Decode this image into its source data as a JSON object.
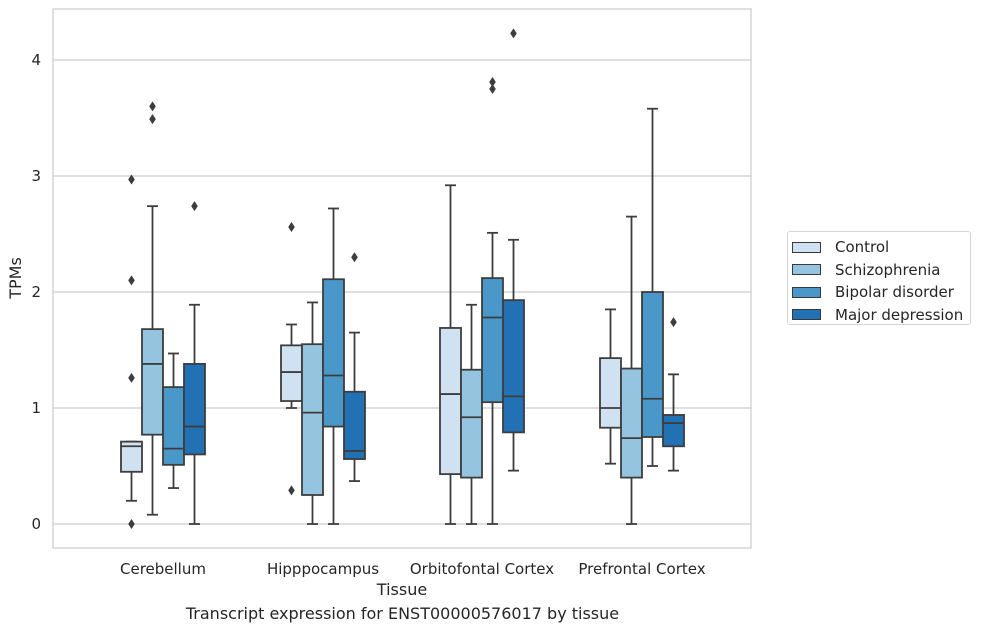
{
  "caption": "Transcript expression for ENST00000576017 by tissue",
  "chart_data": {
    "type": "boxplot",
    "title": "",
    "xlabel": "Tissue",
    "ylabel": "TPMs",
    "ylim": [
      -0.2,
      4.45
    ],
    "yticks": [
      0,
      1,
      2,
      3,
      4
    ],
    "grid": "horizontal",
    "legend_position": "right",
    "categories": [
      "Cerebellum",
      "Hipppocampus",
      "Orbitofontal Cortex",
      "Prefrontal Cortex"
    ],
    "series": [
      {
        "name": "Control",
        "color": "#d0e1f2",
        "boxes": [
          {
            "whisker_low": 0.2,
            "q1": 0.45,
            "median": 0.67,
            "q3": 0.71,
            "whisker_high": 0.71,
            "outliers": [
              0.0,
              1.26,
              2.1,
              2.97
            ]
          },
          {
            "whisker_low": 1.0,
            "q1": 1.06,
            "median": 1.31,
            "q3": 1.54,
            "whisker_high": 1.72,
            "outliers": [
              0.29,
              2.56
            ]
          },
          {
            "whisker_low": 0.0,
            "q1": 0.43,
            "median": 1.12,
            "q3": 1.69,
            "whisker_high": 2.92,
            "outliers": []
          },
          {
            "whisker_low": 0.52,
            "q1": 0.83,
            "median": 1.0,
            "q3": 1.43,
            "whisker_high": 1.85,
            "outliers": []
          }
        ]
      },
      {
        "name": "Schizophrenia",
        "color": "#94c4df",
        "boxes": [
          {
            "whisker_low": 0.08,
            "q1": 0.77,
            "median": 1.38,
            "q3": 1.68,
            "whisker_high": 2.74,
            "outliers": [
              3.49,
              3.6
            ]
          },
          {
            "whisker_low": 0.0,
            "q1": 0.25,
            "median": 0.96,
            "q3": 1.55,
            "whisker_high": 1.91,
            "outliers": []
          },
          {
            "whisker_low": 0.0,
            "q1": 0.4,
            "median": 0.92,
            "q3": 1.33,
            "whisker_high": 1.89,
            "outliers": []
          },
          {
            "whisker_low": 0.0,
            "q1": 0.4,
            "median": 0.74,
            "q3": 1.34,
            "whisker_high": 2.65,
            "outliers": []
          }
        ]
      },
      {
        "name": "Bipolar disorder",
        "color": "#4a98c9",
        "boxes": [
          {
            "whisker_low": 0.31,
            "q1": 0.51,
            "median": 0.65,
            "q3": 1.18,
            "whisker_high": 1.47,
            "outliers": []
          },
          {
            "whisker_low": 0.0,
            "q1": 0.84,
            "median": 1.28,
            "q3": 2.11,
            "whisker_high": 2.72,
            "outliers": []
          },
          {
            "whisker_low": 0.0,
            "q1": 1.05,
            "median": 1.78,
            "q3": 2.12,
            "whisker_high": 2.51,
            "outliers": [
              3.75,
              3.81
            ]
          },
          {
            "whisker_low": 0.5,
            "q1": 0.75,
            "median": 1.08,
            "q3": 2.0,
            "whisker_high": 3.58,
            "outliers": []
          }
        ]
      },
      {
        "name": "Major depression",
        "color": "#2271b5",
        "boxes": [
          {
            "whisker_low": 0.0,
            "q1": 0.6,
            "median": 0.84,
            "q3": 1.38,
            "whisker_high": 1.89,
            "outliers": [
              2.74
            ]
          },
          {
            "whisker_low": 0.37,
            "q1": 0.56,
            "median": 0.63,
            "q3": 1.14,
            "whisker_high": 1.65,
            "outliers": [
              2.3
            ]
          },
          {
            "whisker_low": 0.46,
            "q1": 0.79,
            "median": 1.1,
            "q3": 1.93,
            "whisker_high": 2.45,
            "outliers": [
              4.23
            ]
          },
          {
            "whisker_low": 0.46,
            "q1": 0.67,
            "median": 0.87,
            "q3": 0.94,
            "whisker_high": 1.29,
            "outliers": [
              1.74
            ]
          }
        ]
      }
    ]
  }
}
